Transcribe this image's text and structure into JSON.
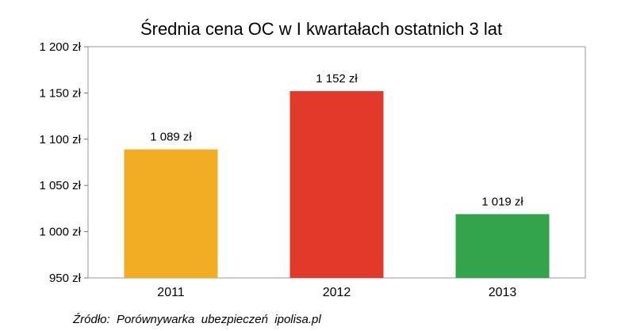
{
  "chart_data": {
    "type": "bar",
    "title": "Średnia cena OC w I kwartałach ostatnich 3 lat",
    "xlabel": "",
    "ylabel": "",
    "categories": [
      "2011",
      "2012",
      "2013"
    ],
    "values": [
      1089,
      1152,
      1019
    ],
    "data_labels": [
      "1 089 zł",
      "1 152 zł",
      "1 019 zł"
    ],
    "bar_colors": [
      "#f2ad25",
      "#e23a2a",
      "#33a44c"
    ],
    "ylim": [
      950,
      1200
    ],
    "yticks": [
      950,
      1000,
      1050,
      1100,
      1150,
      1200
    ],
    "ytick_labels": [
      "950 zł",
      "1 000 zł",
      "1 050 zł",
      "1 100 zł",
      "1 150 zł",
      "1 200 zł"
    ],
    "grid": false,
    "legend": "none"
  },
  "source_note": "Źródło:  Porównywarka  ubezpieczeń  ipolisa.pl"
}
